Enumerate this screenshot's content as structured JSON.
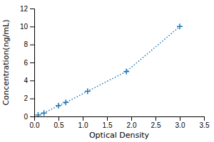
{
  "chart_data": {
    "type": "line",
    "x": [
      0.08,
      0.2,
      0.5,
      0.65,
      1.1,
      1.9,
      3.0
    ],
    "values": [
      0.15,
      0.38,
      1.2,
      1.55,
      2.8,
      5.0,
      10.0
    ],
    "xlabel": "Optical Density",
    "ylabel": "Concentration(ng/mL)",
    "xlim": [
      0,
      3.5
    ],
    "ylim": [
      0,
      12
    ],
    "xticks": [
      {
        "value": 0,
        "label": "0.0"
      },
      0.5,
      {
        "value": 1,
        "label": "1.0"
      },
      1.5,
      {
        "value": 2,
        "label": "2.0"
      },
      2.5,
      {
        "value": 3,
        "label": "3.0"
      },
      3.5
    ],
    "yticks": [
      0,
      2,
      4,
      6,
      8,
      10,
      12
    ],
    "marker": "+",
    "line_style": "dotted"
  }
}
